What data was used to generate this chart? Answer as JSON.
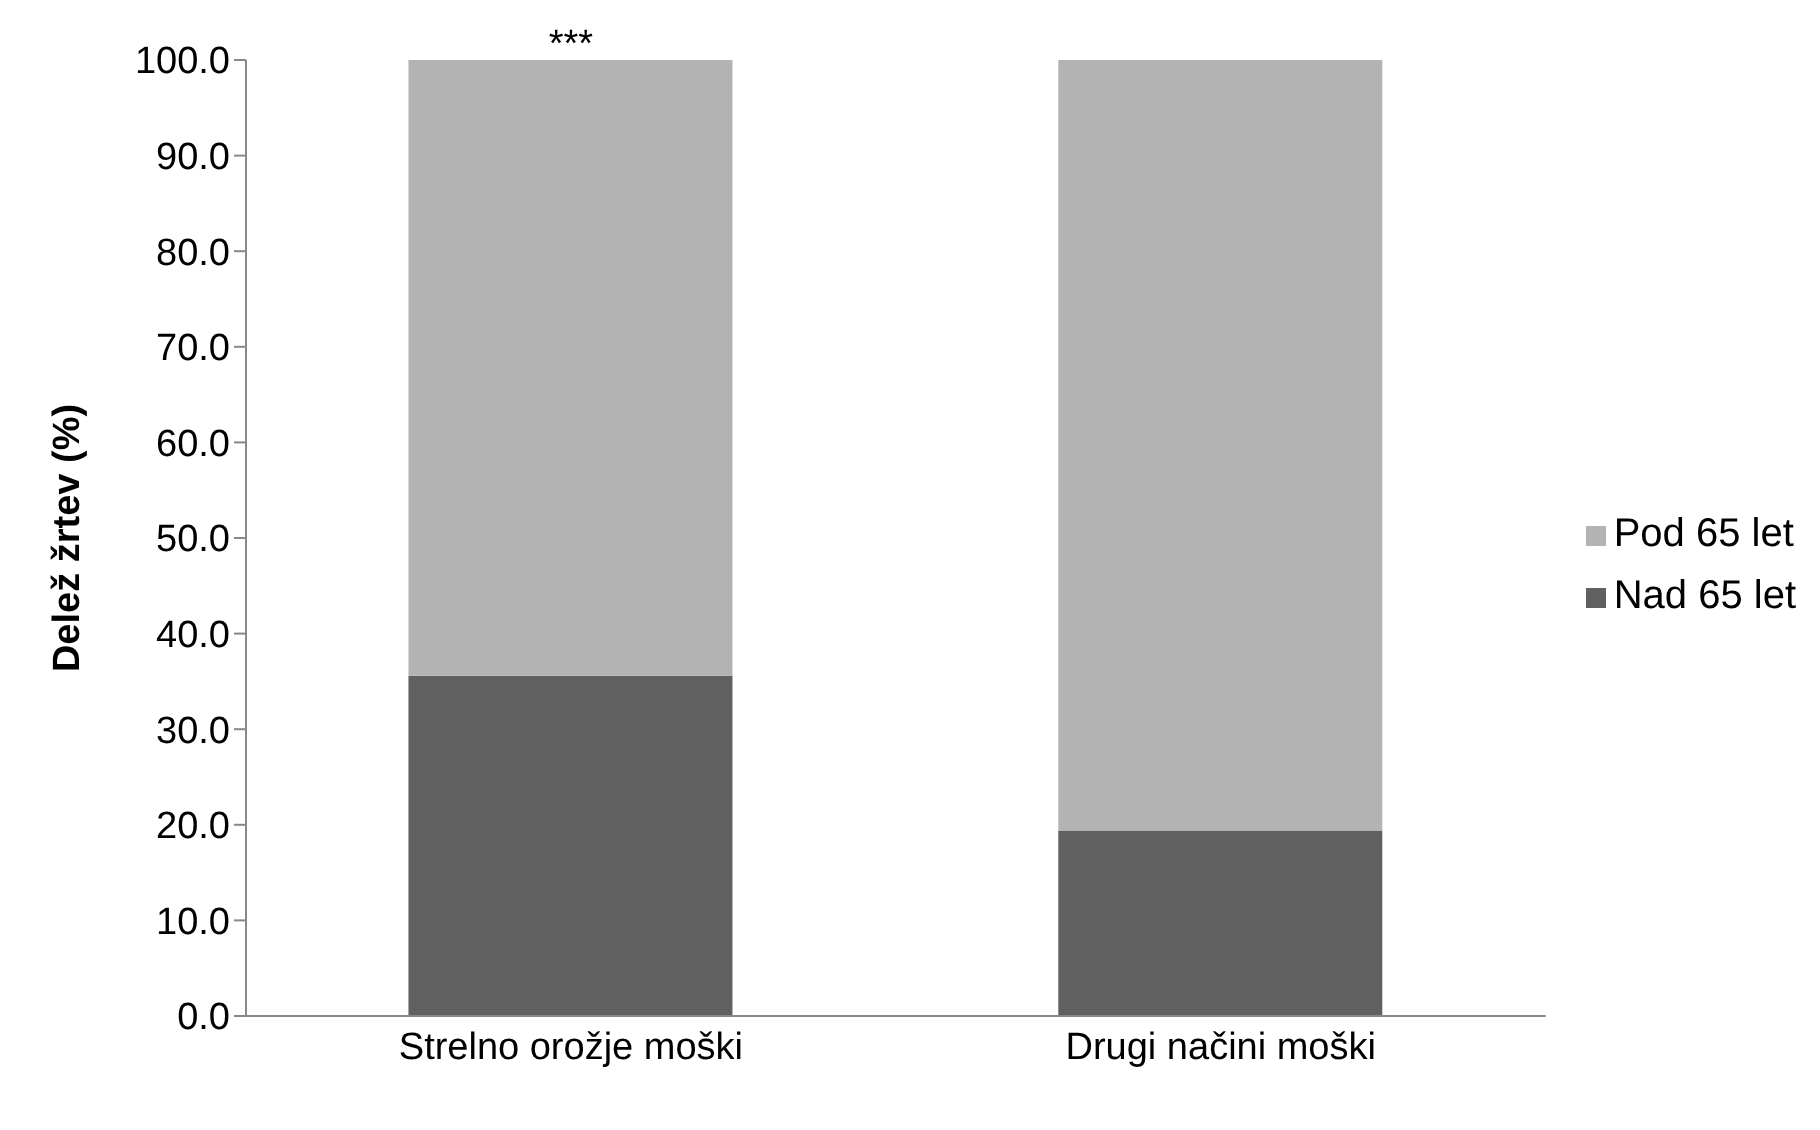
{
  "chart_data": {
    "type": "bar",
    "stacked": true,
    "ylabel": "Delež žrtev (%)",
    "categories": [
      "Strelno orožje moški",
      "Drugi načini moški"
    ],
    "series": [
      {
        "name": "Nad 65 let",
        "color": "#606060",
        "values": [
          35.6,
          19.4
        ]
      },
      {
        "name": "Pod 65 let",
        "color": "#b3b3b3",
        "values": [
          64.4,
          80.6
        ]
      }
    ],
    "ylim": [
      0,
      100
    ],
    "yticks": [
      {
        "value": 0,
        "label": "0.0"
      },
      {
        "value": 10,
        "label": "10.0"
      },
      {
        "value": 20,
        "label": "20.0"
      },
      {
        "value": 30,
        "label": "30.0"
      },
      {
        "value": 40,
        "label": "40.0"
      },
      {
        "value": 50,
        "label": "50.0"
      },
      {
        "value": 60,
        "label": "60.0"
      },
      {
        "value": 70,
        "label": "70.0"
      },
      {
        "value": 80,
        "label": "80.0"
      },
      {
        "value": 90,
        "label": "90.0"
      },
      {
        "value": 100,
        "label": "100.0"
      }
    ],
    "annotations": [
      {
        "text": "***",
        "x": "Strelno orožje moški",
        "y": 100
      }
    ],
    "legend": "right",
    "grid": false
  }
}
